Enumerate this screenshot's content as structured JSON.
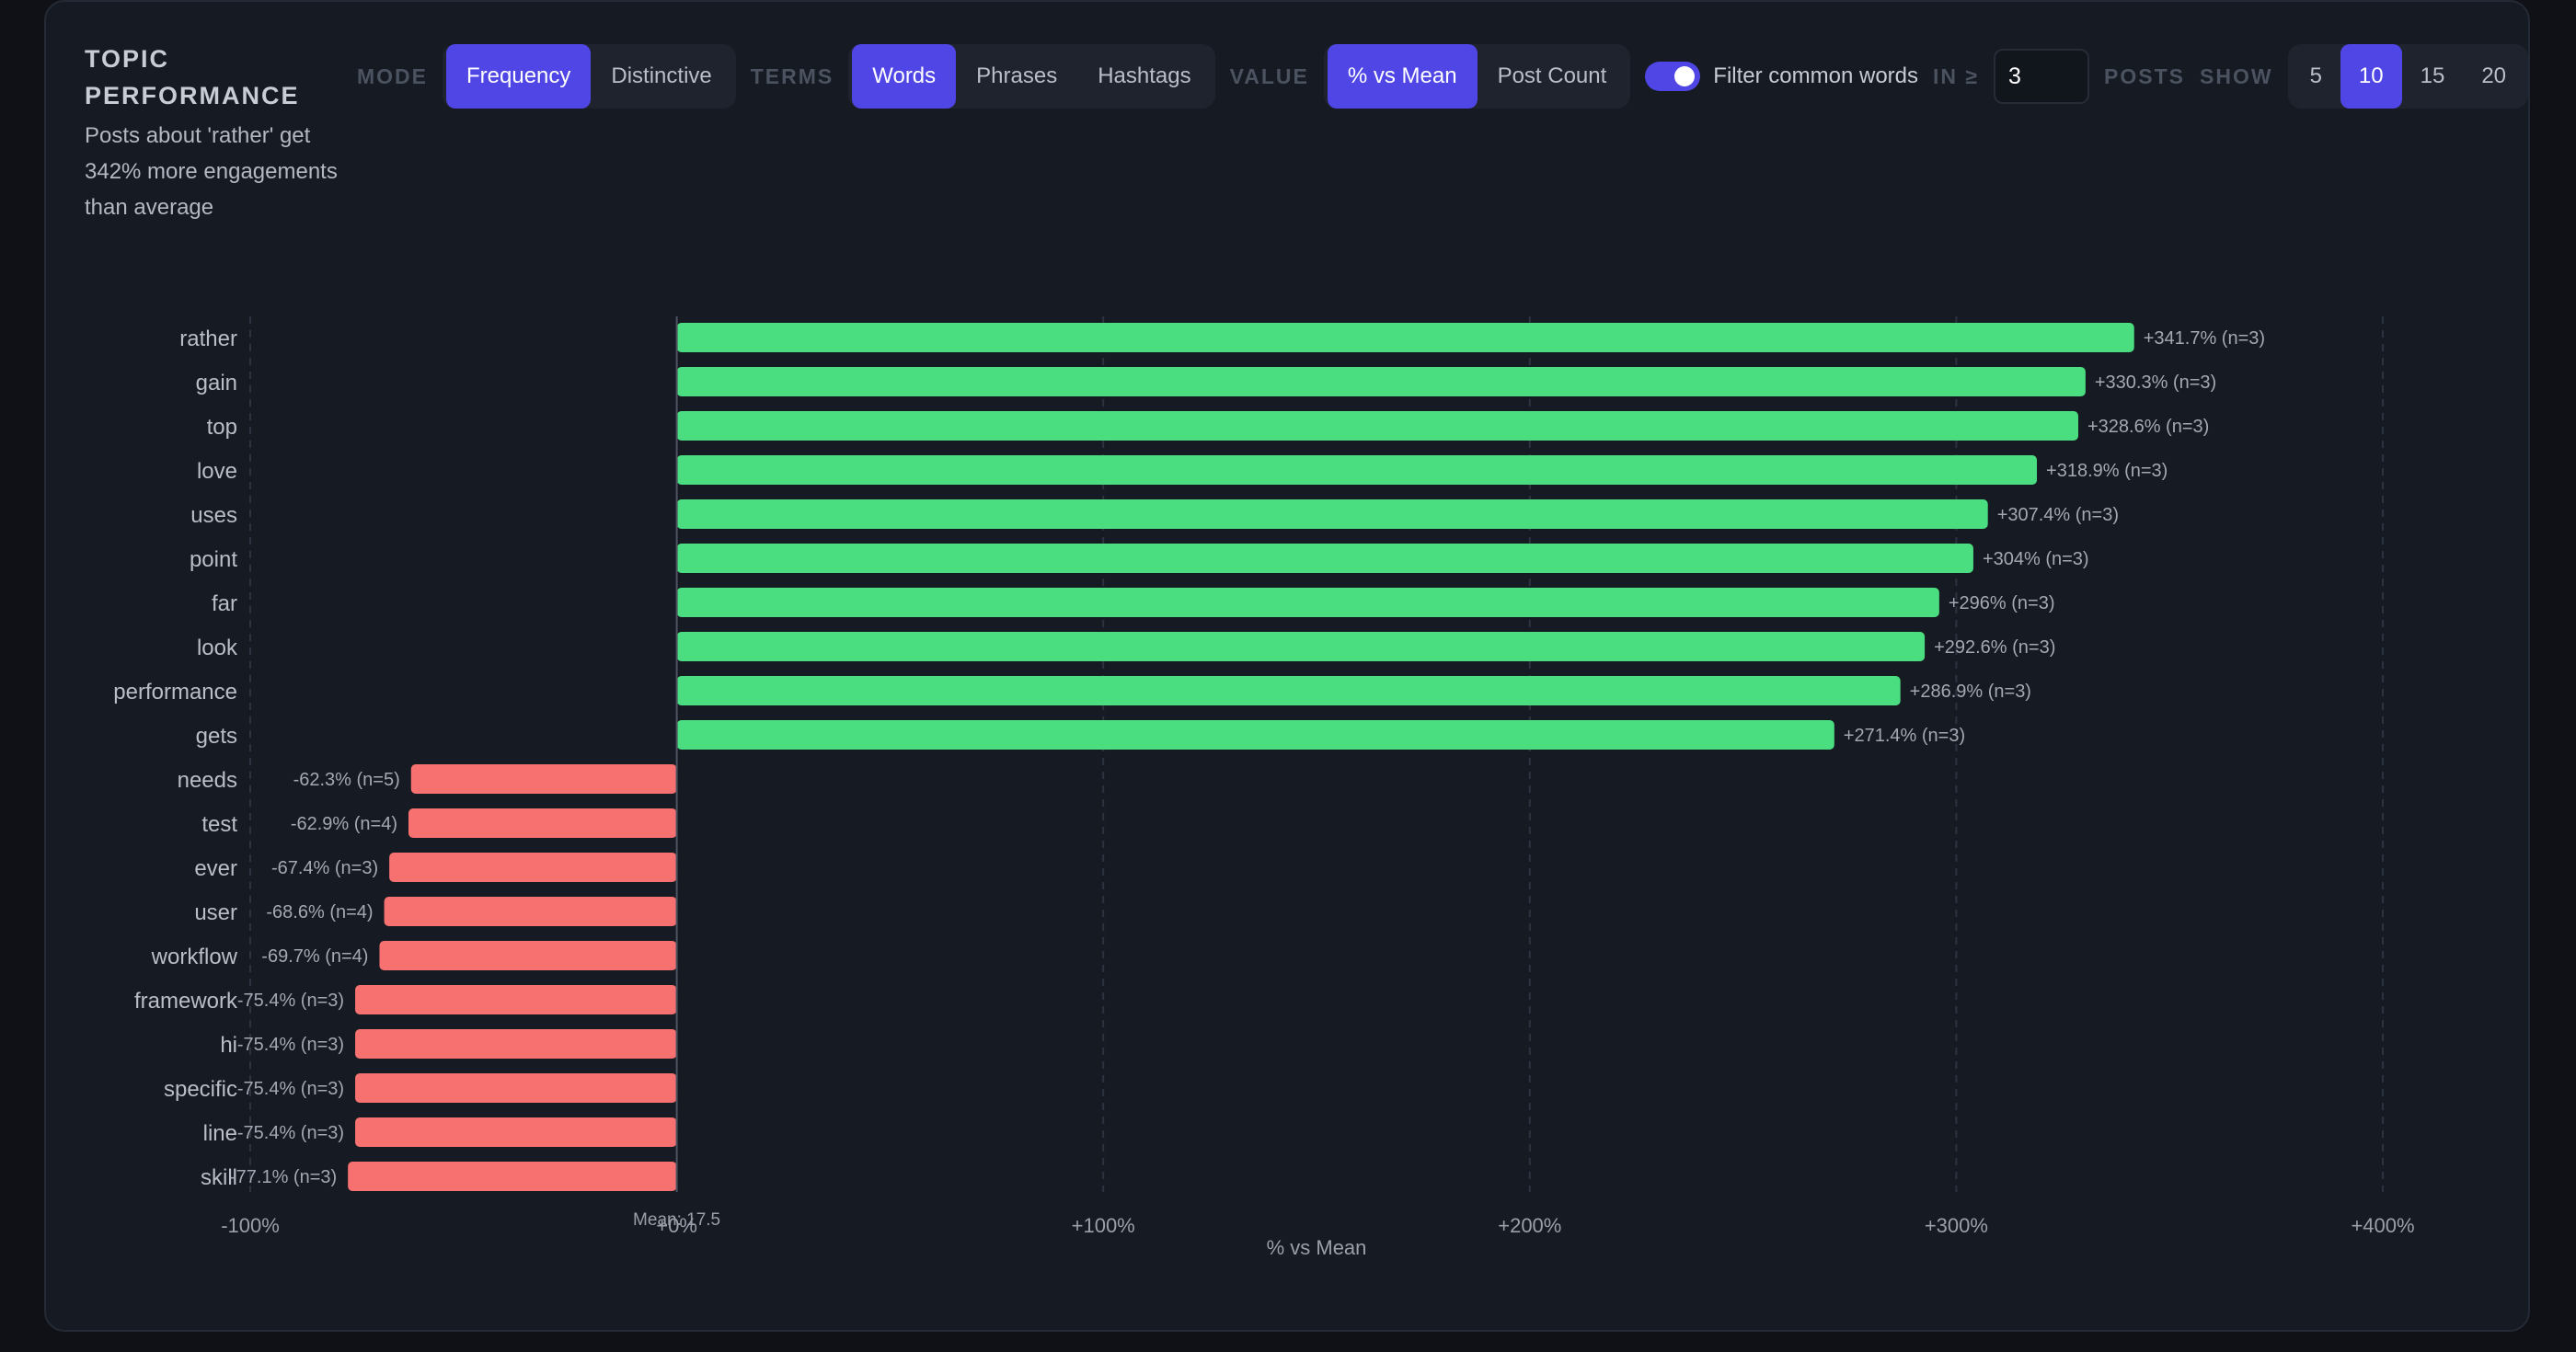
{
  "header": {
    "title": "TOPIC PERFORMANCE",
    "subtitle": "Posts about 'rather' get 342% more engagements than average"
  },
  "controls": {
    "mode_label": "MODE",
    "mode_options": [
      "Frequency",
      "Distinctive"
    ],
    "mode_selected": "Frequency",
    "terms_label": "TERMS",
    "terms_options": [
      "Words",
      "Phrases",
      "Hashtags"
    ],
    "terms_selected": "Words",
    "value_label": "VALUE",
    "value_options": [
      "% vs Mean",
      "Post Count"
    ],
    "value_selected": "% vs Mean",
    "filter_label": "Filter common words",
    "filter_enabled": true,
    "min_posts_label": "IN ≥",
    "min_posts_value": "3",
    "posts_label": "POSTS",
    "show_label": "SHOW",
    "show_options": [
      "5",
      "10",
      "15",
      "20"
    ],
    "show_selected": "10"
  },
  "colors": {
    "positive": "#4ade80",
    "negative": "#f87171",
    "accent": "#4f46e5"
  },
  "chart_data": {
    "type": "bar",
    "orientation": "horizontal",
    "xlabel": "% vs Mean",
    "xlim": [
      -100,
      400
    ],
    "xticks": [
      -100,
      0,
      100,
      200,
      300,
      400
    ],
    "xtick_labels": [
      "-100%",
      "+0%",
      "+100%",
      "+200%",
      "+300%",
      "+400%"
    ],
    "mean_label": "Mean: 17.5",
    "grid": true,
    "categories": [
      "rather",
      "gain",
      "top",
      "love",
      "uses",
      "point",
      "far",
      "look",
      "performance",
      "gets",
      "needs",
      "test",
      "ever",
      "user",
      "workflow",
      "framework",
      "hi",
      "specific",
      "line",
      "skill"
    ],
    "values": [
      341.7,
      330.3,
      328.6,
      318.9,
      307.4,
      304,
      296,
      292.6,
      286.9,
      271.4,
      -62.3,
      -62.9,
      -67.4,
      -68.6,
      -69.7,
      -75.4,
      -75.4,
      -75.4,
      -75.4,
      -77.1
    ],
    "value_labels": [
      "+341.7%",
      "+330.3%",
      "+328.6%",
      "+318.9%",
      "+307.4%",
      "+304%",
      "+296%",
      "+292.6%",
      "+286.9%",
      "+271.4%",
      "-62.3%",
      "-62.9%",
      "-67.4%",
      "-68.6%",
      "-69.7%",
      "-75.4%",
      "-75.4%",
      "-75.4%",
      "-75.4%",
      "-77.1%"
    ],
    "counts": [
      "(n=3)",
      "(n=3)",
      "(n=3)",
      "(n=3)",
      "(n=3)",
      "(n=3)",
      "(n=3)",
      "(n=3)",
      "(n=3)",
      "(n=3)",
      "(n=5)",
      "(n=4)",
      "(n=3)",
      "(n=4)",
      "(n=4)",
      "(n=3)",
      "(n=3)",
      "(n=3)",
      "(n=3)",
      "(n=3)"
    ]
  }
}
